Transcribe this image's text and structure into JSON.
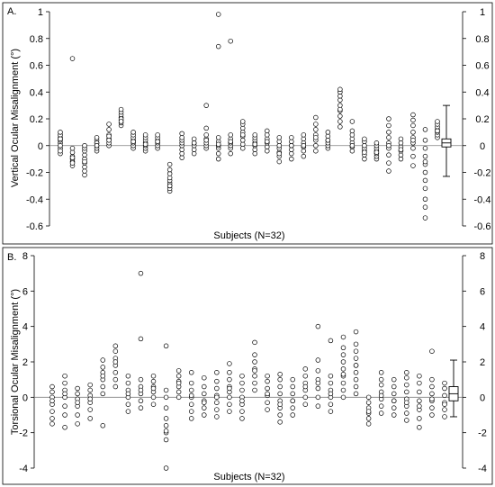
{
  "chart_data": [
    {
      "type": "scatter",
      "panel_label": "A.",
      "xlabel": "Subjects (N=32)",
      "ylabel": "Vertical Ocular Misalignment (°)",
      "ylim": [
        -0.6,
        1.0
      ],
      "yticks": [
        -0.6,
        -0.4,
        -0.2,
        0,
        0.2,
        0.4,
        0.6,
        0.8,
        1
      ],
      "ytick_labels": [
        "-0.6",
        "-0.4",
        "-0.2",
        "0",
        "0.2",
        "0.4",
        "0.6",
        "0.8",
        "1"
      ],
      "grid": false,
      "zero_line": true,
      "subjects": [
        {
          "values": [
            -0.06,
            -0.02,
            0.02,
            0.04,
            0.06,
            0.08,
            0.1,
            0.0,
            -0.04,
            0.05
          ]
        },
        {
          "values": [
            -0.15,
            -0.12,
            -0.1,
            -0.08,
            -0.05,
            -0.02,
            0.65,
            -0.13,
            -0.09
          ]
        },
        {
          "values": [
            -0.22,
            -0.19,
            -0.16,
            -0.13,
            -0.1,
            -0.07,
            -0.04,
            -0.02,
            0.0,
            -0.12
          ]
        },
        {
          "values": [
            -0.04,
            -0.02,
            0.0,
            0.02,
            0.04,
            0.06,
            0.02,
            0.0
          ]
        },
        {
          "values": [
            0.0,
            0.02,
            0.05,
            0.08,
            0.12,
            0.16,
            0.04,
            0.07
          ]
        },
        {
          "values": [
            0.15,
            0.17,
            0.19,
            0.21,
            0.23,
            0.25,
            0.27,
            0.2,
            0.18
          ]
        },
        {
          "values": [
            -0.02,
            0.0,
            0.02,
            0.04,
            0.06,
            0.08,
            0.1,
            0.03
          ]
        },
        {
          "values": [
            -0.04,
            -0.02,
            0.0,
            0.02,
            0.04,
            0.06,
            0.08,
            0.01
          ]
        },
        {
          "values": [
            -0.02,
            0.0,
            0.02,
            0.04,
            0.06,
            0.08,
            0.03
          ]
        },
        {
          "values": [
            -0.34,
            -0.32,
            -0.3,
            -0.28,
            -0.26,
            -0.24,
            -0.21,
            -0.18,
            -0.14,
            -0.3
          ]
        },
        {
          "values": [
            -0.09,
            -0.06,
            -0.03,
            0.0,
            0.02,
            0.04,
            0.06,
            0.09
          ]
        },
        {
          "values": [
            -0.06,
            -0.03,
            0.0,
            0.02,
            0.05,
            0.02
          ]
        },
        {
          "values": [
            -0.02,
            0.0,
            0.02,
            0.05,
            0.08,
            0.13,
            0.3,
            0.04
          ]
        },
        {
          "values": [
            -0.1,
            -0.06,
            -0.02,
            0.0,
            0.03,
            0.06,
            0.74,
            0.98,
            0.01
          ]
        },
        {
          "values": [
            -0.06,
            -0.02,
            0.0,
            0.02,
            0.05,
            0.08,
            0.78,
            0.03
          ]
        },
        {
          "values": [
            -0.02,
            0.01,
            0.04,
            0.07,
            0.1,
            0.13,
            0.16,
            0.18,
            0.08
          ]
        },
        {
          "values": [
            -0.06,
            -0.03,
            0.0,
            0.02,
            0.04,
            0.06,
            0.08,
            0.01
          ]
        },
        {
          "values": [
            -0.04,
            -0.01,
            0.02,
            0.05,
            0.08,
            0.11,
            0.03
          ]
        },
        {
          "values": [
            -0.12,
            -0.08,
            -0.05,
            -0.02,
            0.0,
            0.03,
            0.06,
            -0.06
          ]
        },
        {
          "values": [
            -0.1,
            -0.06,
            -0.03,
            0.0,
            0.03,
            0.06,
            0.0
          ]
        },
        {
          "values": [
            -0.08,
            -0.04,
            -0.01,
            0.02,
            0.05,
            0.08,
            0.0
          ]
        },
        {
          "values": [
            -0.04,
            0.0,
            0.04,
            0.08,
            0.12,
            0.16,
            0.21,
            0.06
          ]
        },
        {
          "values": [
            -0.02,
            0.0,
            0.02,
            0.04,
            0.07,
            0.1,
            0.04
          ]
        },
        {
          "values": [
            0.14,
            0.18,
            0.22,
            0.26,
            0.3,
            0.34,
            0.37,
            0.4,
            0.42,
            0.27
          ]
        },
        {
          "values": [
            -0.04,
            -0.01,
            0.02,
            0.05,
            0.08,
            0.11,
            0.18,
            0.0
          ]
        },
        {
          "values": [
            -0.1,
            -0.07,
            -0.04,
            -0.02,
            0.0,
            0.03,
            0.05,
            -0.05
          ]
        },
        {
          "values": [
            -0.1,
            -0.08,
            -0.06,
            -0.04,
            -0.02,
            0.0,
            0.02,
            -0.05
          ]
        },
        {
          "values": [
            -0.19,
            -0.13,
            -0.07,
            -0.02,
            0.02,
            0.06,
            0.1,
            0.15,
            0.2,
            0.0
          ]
        },
        {
          "values": [
            -0.1,
            -0.07,
            -0.04,
            -0.01,
            0.02,
            0.05,
            -0.03
          ]
        },
        {
          "values": [
            -0.15,
            -0.08,
            -0.02,
            0.02,
            0.06,
            0.1,
            0.15,
            0.19,
            0.23,
            0.04
          ]
        },
        {
          "values": [
            -0.54,
            -0.46,
            -0.4,
            -0.32,
            -0.26,
            -0.2,
            -0.14,
            -0.08,
            -0.02,
            0.04,
            0.12,
            -0.12
          ]
        },
        {
          "values": [
            0.06,
            0.08,
            0.1,
            0.12,
            0.14,
            0.16,
            0.18,
            0.11
          ]
        }
      ],
      "summary_box": {
        "min": -0.23,
        "q1": -0.01,
        "median": 0.02,
        "q3": 0.05,
        "max": 0.3
      }
    },
    {
      "type": "scatter",
      "panel_label": "B.",
      "xlabel": "Subjects (N=32)",
      "ylabel": "Torsional Ocular Misalignment (°)",
      "ylim": [
        -4,
        8
      ],
      "yticks": [
        -4,
        -2,
        0,
        2,
        4,
        6,
        8
      ],
      "ytick_labels": [
        "-4",
        "-2",
        "0",
        "2",
        "4",
        "6",
        "8"
      ],
      "grid": false,
      "zero_line": true,
      "subjects": [
        {
          "values": [
            -1.5,
            -1.2,
            -0.8,
            -0.4,
            0.0,
            0.3,
            0.6,
            -0.2
          ]
        },
        {
          "values": [
            -1.7,
            -1.0,
            -0.5,
            0.0,
            0.4,
            0.8,
            1.2,
            0.2
          ]
        },
        {
          "values": [
            -1.5,
            -1.0,
            -0.5,
            -0.1,
            0.2,
            0.5,
            -0.3
          ]
        },
        {
          "values": [
            -1.2,
            -0.7,
            -0.3,
            0.1,
            0.4,
            0.7,
            -0.1
          ]
        },
        {
          "values": [
            -1.6,
            0.2,
            0.6,
            1.0,
            1.4,
            1.7,
            2.1,
            1.2
          ]
        },
        {
          "values": [
            0.6,
            1.0,
            1.4,
            1.8,
            2.2,
            2.6,
            2.9,
            2.0
          ]
        },
        {
          "values": [
            -0.8,
            -0.4,
            0.0,
            0.4,
            0.8,
            1.2,
            0.2
          ]
        },
        {
          "values": [
            -0.6,
            -0.2,
            0.2,
            0.6,
            1.0,
            3.3,
            7.0,
            0.4
          ]
        },
        {
          "values": [
            -0.4,
            0.0,
            0.3,
            0.6,
            0.9,
            1.2,
            0.5
          ]
        },
        {
          "values": [
            -4.0,
            -2.4,
            -2.0,
            -1.6,
            -1.2,
            -0.6,
            0.0,
            0.4,
            2.9,
            -1.9
          ]
        },
        {
          "values": [
            0.0,
            0.3,
            0.6,
            0.9,
            1.2,
            1.5,
            0.8
          ]
        },
        {
          "values": [
            -1.2,
            -0.8,
            -0.4,
            0.0,
            0.4,
            0.8,
            1.4,
            0.1
          ]
        },
        {
          "values": [
            -1.0,
            -0.6,
            -0.2,
            0.2,
            0.6,
            1.1,
            -0.3
          ]
        },
        {
          "values": [
            -1.1,
            -0.7,
            -0.3,
            0.1,
            0.5,
            0.9,
            1.4,
            0.0
          ]
        },
        {
          "values": [
            -0.8,
            -0.4,
            0.0,
            0.3,
            0.6,
            1.0,
            1.4,
            1.9,
            0.5
          ]
        },
        {
          "values": [
            -1.2,
            -0.8,
            -0.4,
            0.0,
            0.4,
            0.8,
            1.2,
            -0.2
          ]
        },
        {
          "values": [
            0.4,
            0.8,
            1.2,
            1.6,
            2.0,
            2.4,
            3.1,
            1.5
          ]
        },
        {
          "values": [
            -0.7,
            -0.3,
            0.1,
            0.5,
            0.9,
            1.2,
            0.2
          ]
        },
        {
          "values": [
            -1.4,
            -1.0,
            -0.6,
            -0.2,
            0.2,
            0.6,
            1.0,
            1.3,
            -0.4
          ]
        },
        {
          "values": [
            -1.0,
            -0.6,
            -0.2,
            0.2,
            0.6,
            1.0,
            -0.2
          ]
        },
        {
          "values": [
            -0.4,
            0.0,
            0.4,
            0.8,
            1.2,
            1.6,
            0.6
          ]
        },
        {
          "values": [
            -0.5,
            0.0,
            0.5,
            1.0,
            1.5,
            2.1,
            4.0,
            0.8
          ]
        },
        {
          "values": [
            -0.8,
            -0.4,
            0.0,
            0.4,
            0.8,
            1.2,
            3.2,
            0.2
          ]
        },
        {
          "values": [
            0.0,
            0.4,
            0.8,
            1.2,
            1.6,
            2.0,
            2.4,
            2.8,
            3.4,
            1.3
          ]
        },
        {
          "values": [
            0.2,
            0.6,
            1.0,
            1.4,
            1.8,
            2.2,
            2.6,
            3.0,
            3.7,
            1.8
          ]
        },
        {
          "values": [
            -1.5,
            -1.2,
            -0.9,
            -0.6,
            -0.3,
            0.0,
            -0.8
          ]
        },
        {
          "values": [
            -0.9,
            -0.5,
            -0.1,
            0.3,
            0.7,
            1.0,
            1.4,
            0.1
          ]
        },
        {
          "values": [
            -1.0,
            -0.6,
            -0.2,
            0.2,
            0.6,
            1.0,
            -0.2
          ]
        },
        {
          "values": [
            -1.3,
            -0.9,
            -0.5,
            -0.1,
            0.3,
            0.7,
            1.1,
            1.4,
            -0.3
          ]
        },
        {
          "values": [
            -1.7,
            -1.2,
            -0.7,
            -0.2,
            0.3,
            0.8,
            1.2,
            -0.5
          ]
        },
        {
          "values": [
            -1.0,
            -0.6,
            -0.2,
            0.2,
            0.6,
            1.0,
            2.6,
            -0.1
          ]
        },
        {
          "values": [
            -1.1,
            -0.7,
            -0.3,
            0.1,
            0.5,
            0.8,
            -0.4
          ]
        }
      ],
      "summary_box": {
        "min": -1.1,
        "q1": -0.2,
        "median": 0.2,
        "q3": 0.6,
        "max": 2.1
      }
    }
  ]
}
